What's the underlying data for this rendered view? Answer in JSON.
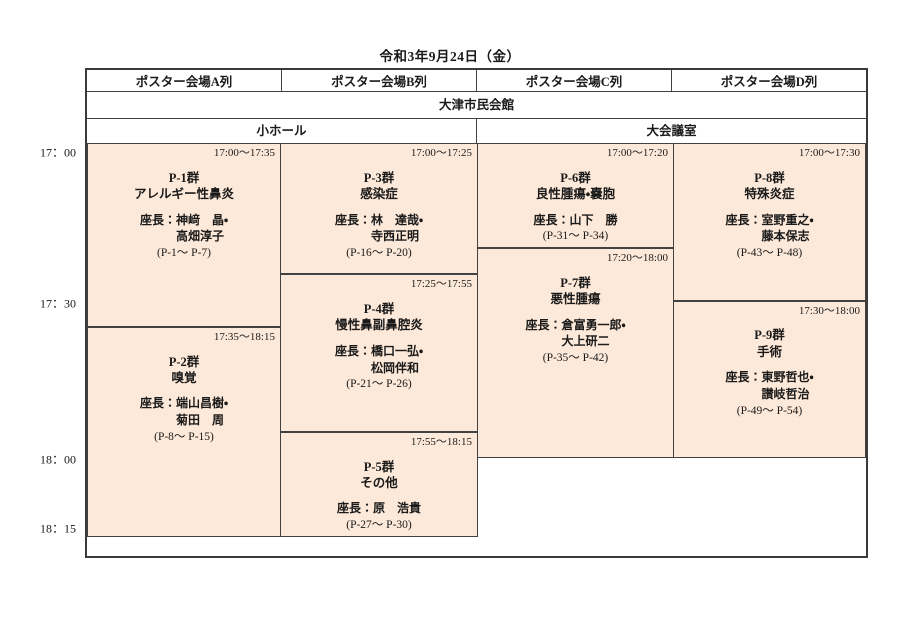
{
  "title": "令和3年9月24日（金）",
  "venue_building": "大津市民会館",
  "column_headers": [
    "ポスター会場A列",
    "ポスター会場B列",
    "ポスター会場C列",
    "ポスター会場D列"
  ],
  "room_headers": [
    "小ホール",
    "大会議室"
  ],
  "time_labels": [
    "17：00",
    "17：30",
    "18：00",
    "18：15"
  ],
  "time_axis": {
    "start": "17:00",
    "end": "18:15"
  },
  "colors": {
    "session_fill": "#FDE9D9",
    "grid_border": "#424242"
  },
  "sessions": [
    {
      "column": 0,
      "time": "17:00～17:35",
      "start_min": 0,
      "end_min": 35,
      "group": "P-1群",
      "topic": "アレルギー性鼻炎",
      "chairs": "座長：神﨑　晶・\n　　　高畑淳子",
      "pages": "(P-1～ P-7)"
    },
    {
      "column": 0,
      "time": "17:35～18:15",
      "start_min": 35,
      "end_min": 75,
      "group": "P-2群",
      "topic": "嗅覚",
      "chairs": "座長：端山昌樹・\n　　　菊田　周",
      "pages": "(P-8～ P-15)"
    },
    {
      "column": 1,
      "time": "17:00～17:25",
      "start_min": 0,
      "end_min": 25,
      "group": "P-3群",
      "topic": "感染症",
      "chairs": "座長：林　達哉・\n　　　寺西正明",
      "pages": "(P-16～ P-20)"
    },
    {
      "column": 1,
      "time": "17:25～17:55",
      "start_min": 25,
      "end_min": 55,
      "group": "P-4群",
      "topic": "慢性鼻副鼻腔炎",
      "chairs": "座長：橋口一弘・\n　　　松岡伴和",
      "pages": "(P-21～ P-26)"
    },
    {
      "column": 1,
      "time": "17:55～18:15",
      "start_min": 55,
      "end_min": 75,
      "group": "P-5群",
      "topic": "その他",
      "chairs": "座長：原　浩貴",
      "pages": "(P-27～ P-30)"
    },
    {
      "column": 2,
      "time": "17:00～17:20",
      "start_min": 0,
      "end_min": 20,
      "group": "P-6群",
      "topic": "良性腫瘍・嚢胞",
      "chairs": "座長：山下　勝",
      "pages": "(P-31～ P-34)"
    },
    {
      "column": 2,
      "time": "17:20～18:00",
      "start_min": 20,
      "end_min": 60,
      "group": "P-7群",
      "topic": "悪性腫瘍",
      "chairs": "座長：倉富勇一郎・\n　　　大上研二",
      "pages": "(P-35～ P-42)"
    },
    {
      "column": 3,
      "time": "17:00～17:30",
      "start_min": 0,
      "end_min": 30,
      "group": "P-8群",
      "topic": "特殊炎症",
      "chairs": "座長：室野重之・\n　　　藤本保志",
      "pages": "(P-43～ P-48)"
    },
    {
      "column": 3,
      "time": "17:30～18:00",
      "start_min": 30,
      "end_min": 60,
      "group": "P-9群",
      "topic": "手術",
      "chairs": "座長：東野哲也・\n　　　讃岐哲治",
      "pages": "(P-49～ P-54)"
    }
  ]
}
